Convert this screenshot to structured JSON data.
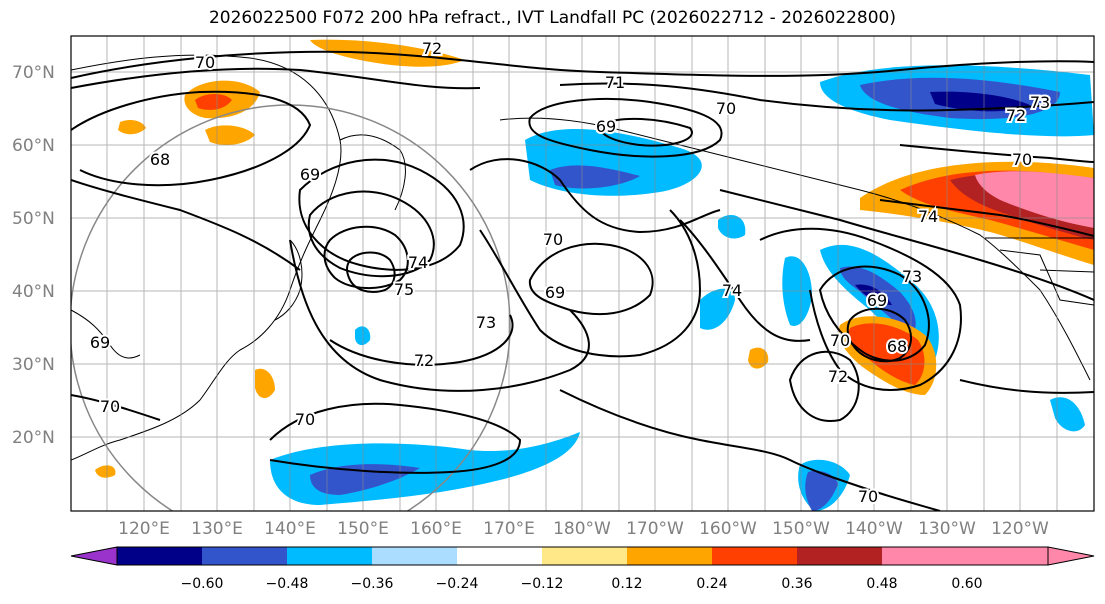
{
  "title": "2026022500 F072 200 hPa refract., IVT Landfall PC (2026022712 - 2026022800)",
  "lat_labels": [
    "70°N",
    "60°N",
    "50°N",
    "40°N",
    "30°N",
    "20°N"
  ],
  "lon_labels": [
    "120°E",
    "130°E",
    "140°E",
    "150°E",
    "160°E",
    "170°E",
    "180°W",
    "170°W",
    "160°W",
    "150°W",
    "140°W",
    "130°W",
    "120°W"
  ],
  "colorbar": {
    "colors": [
      "#9933cc",
      "#000088",
      "#3355cc",
      "#00bbff",
      "#aaddff",
      "#ffffff",
      "#ffe888",
      "#ffa500",
      "#ff4000",
      "#b22222",
      "#ff88aa"
    ],
    "tick_labels": [
      "−0.60",
      "−0.48",
      "−0.36",
      "−0.24",
      "−0.12",
      "0.12",
      "0.24",
      "0.36",
      "0.48",
      "0.60"
    ]
  },
  "contour_labels": [
    "72",
    "70",
    "71",
    "70",
    "69",
    "73",
    "72",
    "68",
    "69",
    "70",
    "74",
    "70",
    "69",
    "74",
    "75",
    "73",
    "72",
    "74",
    "73",
    "69",
    "68",
    "72",
    "69",
    "70",
    "70",
    "70",
    "70"
  ]
}
